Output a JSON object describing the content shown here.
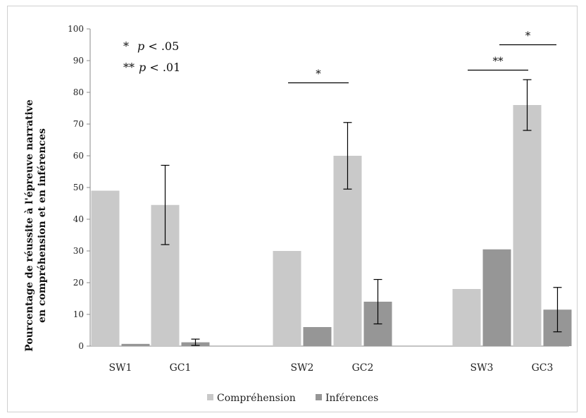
{
  "chart_data": {
    "type": "bar",
    "ylabel_lines": [
      "Pourcentage de réussite à l'épreuve narrative",
      "en compréhension et en inférences"
    ],
    "ylim": [
      0,
      100
    ],
    "yticks": [
      0,
      10,
      20,
      30,
      40,
      50,
      60,
      70,
      80,
      90,
      100
    ],
    "categories": [
      "SW1",
      "GC1",
      "SW2",
      "GC2",
      "SW3",
      "GC3"
    ],
    "series": [
      {
        "name": "Compréhension",
        "color": "#c9c9c9",
        "values": [
          49,
          44.5,
          30,
          60,
          18,
          76
        ],
        "errors": [
          null,
          12.5,
          null,
          10.5,
          null,
          8
        ]
      },
      {
        "name": "Inférences",
        "color": "#969696",
        "values": [
          0.7,
          1.2,
          6,
          14,
          30.5,
          11.5
        ],
        "errors": [
          null,
          1,
          null,
          7,
          null,
          7
        ]
      }
    ],
    "significance_note": [
      {
        "stars": "*",
        "p": "p",
        "rest": " < .05"
      },
      {
        "stars": "**",
        "p": "p",
        "rest": " < .01"
      }
    ],
    "significance_bars": [
      {
        "from": "SW2",
        "to": "GC2",
        "level": 83,
        "label": "*"
      },
      {
        "from": "SW3",
        "to": "GC3",
        "level": 87,
        "label": "**"
      },
      {
        "from": "SW3",
        "to": "GC3",
        "level": 95,
        "label": "*",
        "offset": "right"
      }
    ],
    "legend_position": "bottom-center",
    "grid": false
  }
}
